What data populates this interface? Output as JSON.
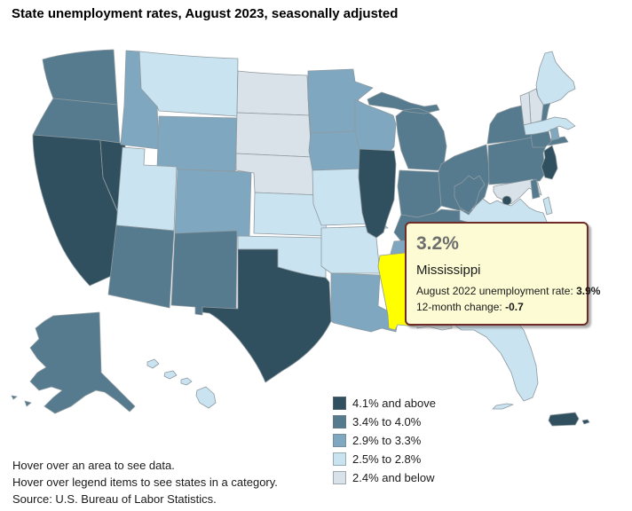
{
  "title": "State unemployment rates, August 2023, seasonally adjusted",
  "tooltip": {
    "rate": "3.2%",
    "state": "Mississippi",
    "line1_label": "August 2022 unemployment rate: ",
    "line1_value": "3.9%",
    "line2_label": "12-month change: ",
    "line2_value": "-0.7"
  },
  "legend": {
    "items": [
      {
        "label": "4.1% and above",
        "color": "#31505F"
      },
      {
        "label": "3.4% to 4.0%",
        "color": "#567B8F"
      },
      {
        "label": "2.9% to 3.3%",
        "color": "#7FA8C0"
      },
      {
        "label": "2.5% to 2.8%",
        "color": "#CAE3F0"
      },
      {
        "label": "2.4% and below",
        "color": "#D8E2E8"
      }
    ]
  },
  "footer": {
    "lines": [
      "Hover over an area to see data.",
      "Hover over legend items to see states in a category.",
      "Source: U.S. Bureau of Labor Statistics."
    ]
  },
  "map": {
    "border_color": "#8E9AA0",
    "highlight": {
      "state": "MS",
      "color": "#FFFF00"
    }
  },
  "chart_data": {
    "type": "heatmap",
    "variant": "us-state-choropleth",
    "title": "State unemployment rates, August 2023, seasonally adjusted",
    "legend_position": "bottom-right",
    "bins": [
      "4.1% and above",
      "3.4% to 4.0%",
      "2.9% to 3.3%",
      "2.5% to 2.8%",
      "2.4% and below"
    ],
    "bin_colors": [
      "#31505F",
      "#567B8F",
      "#7FA8C0",
      "#CAE3F0",
      "#D8E2E8"
    ],
    "states": {
      "WA": {
        "name": "Washington",
        "bin": 2
      },
      "OR": {
        "name": "Oregon",
        "bin": 2
      },
      "CA": {
        "name": "California",
        "bin": 1
      },
      "NV": {
        "name": "Nevada",
        "bin": 1
      },
      "ID": {
        "name": "Idaho",
        "bin": 3
      },
      "MT": {
        "name": "Montana",
        "bin": 4
      },
      "WY": {
        "name": "Wyoming",
        "bin": 3
      },
      "UT": {
        "name": "Utah",
        "bin": 4
      },
      "CO": {
        "name": "Colorado",
        "bin": 3
      },
      "AZ": {
        "name": "Arizona",
        "bin": 2
      },
      "NM": {
        "name": "New Mexico",
        "bin": 2
      },
      "ND": {
        "name": "North Dakota",
        "bin": 5
      },
      "SD": {
        "name": "South Dakota",
        "bin": 5
      },
      "NE": {
        "name": "Nebraska",
        "bin": 5
      },
      "KS": {
        "name": "Kansas",
        "bin": 4
      },
      "OK": {
        "name": "Oklahoma",
        "bin": 4
      },
      "TX": {
        "name": "Texas",
        "bin": 1
      },
      "MN": {
        "name": "Minnesota",
        "bin": 3
      },
      "IA": {
        "name": "Iowa",
        "bin": 3
      },
      "MO": {
        "name": "Missouri",
        "bin": 4
      },
      "AR": {
        "name": "Arkansas",
        "bin": 4
      },
      "LA": {
        "name": "Louisiana",
        "bin": 3
      },
      "WI": {
        "name": "Wisconsin",
        "bin": 3
      },
      "IL": {
        "name": "Illinois",
        "bin": 1
      },
      "MI": {
        "name": "Michigan",
        "bin": 2
      },
      "IN": {
        "name": "Indiana",
        "bin": 2
      },
      "OH": {
        "name": "Ohio",
        "bin": 2
      },
      "KY": {
        "name": "Kentucky",
        "bin": 2
      },
      "TN": {
        "name": "Tennessee",
        "bin": 3
      },
      "MS": {
        "name": "Mississippi",
        "bin": 3
      },
      "AL": {
        "name": "Alabama",
        "bin": 5
      },
      "GA": {
        "name": "Georgia",
        "bin": 3
      },
      "FL": {
        "name": "Florida",
        "bin": 4
      },
      "NY": {
        "name": "New York",
        "bin": 2
      },
      "PA": {
        "name": "Pennsylvania",
        "bin": 2
      },
      "NJ": {
        "name": "New Jersey",
        "bin": 1
      },
      "CT": {
        "name": "Connecticut",
        "bin": 2
      },
      "RI": {
        "name": "Rhode Island",
        "bin": 3
      },
      "MA": {
        "name": "Massachusetts",
        "bin": 4
      },
      "VT": {
        "name": "Vermont",
        "bin": 5
      },
      "NH": {
        "name": "New Hampshire",
        "bin": 5
      },
      "ME": {
        "name": "Maine",
        "bin": 4
      },
      "WV": {
        "name": "West Virginia",
        "bin": 2
      },
      "VA": {
        "name": "Virginia",
        "bin": 4
      },
      "MD": {
        "name": "Maryland",
        "bin": 5
      },
      "DE": {
        "name": "Delaware",
        "bin": 2
      },
      "DC": {
        "name": "District of Columbia",
        "bin": 1
      },
      "NC": {
        "name": "North Carolina",
        "bin": 3
      },
      "SC": {
        "name": "South Carolina",
        "bin": 3
      },
      "AK": {
        "name": "Alaska",
        "bin": 2
      },
      "HI": {
        "name": "Hawaii",
        "bin": 4
      },
      "PR": {
        "name": "Puerto Rico",
        "bin": 1
      }
    },
    "highlight": {
      "state_code": "MS",
      "state": "Mississippi",
      "value": "3.2%",
      "august_2022_rate": "3.9%",
      "twelve_month_change": "-0.7"
    }
  }
}
